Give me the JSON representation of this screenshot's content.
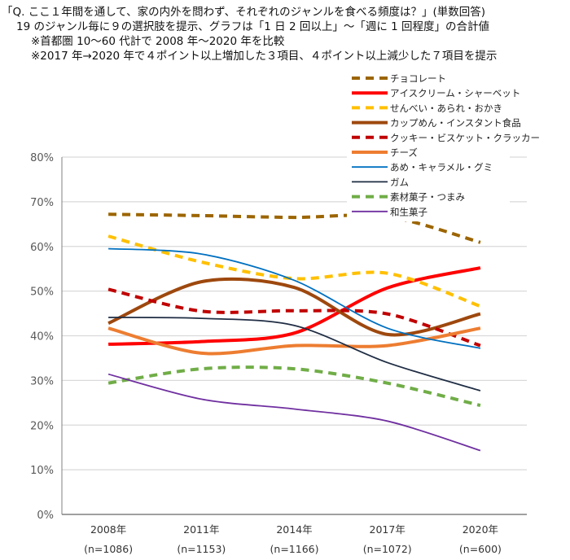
{
  "title_lines": [
    "「Q. ここ１年間を通して、家の内外を問わず、それぞれのジャンルを食べる頻度は？」(単数回答)",
    "19 のジャンル毎に９の選択肢を提示、グラフは「1 日 2 回以上」～「週に 1 回程度」の合計値",
    "※首都圏 10～60 代計で 2008 年～2020 年を比較",
    "※2017 年→2020 年で４ポイント以上増加した３項目、４ポイント以上減少した７項目を提示"
  ],
  "chart_data": {
    "type": "line",
    "categories": [
      "2008年",
      "2011年",
      "2014年",
      "2017年",
      "2020年"
    ],
    "category_sublabels": [
      "(n=1086)",
      "(n=1153)",
      "(n=1166)",
      "(n=1072)",
      "(n=600)"
    ],
    "ylim": [
      0,
      80
    ],
    "yticks": [
      "0%",
      "10%",
      "20%",
      "30%",
      "40%",
      "50%",
      "60%",
      "70%",
      "80%"
    ],
    "grid": true,
    "legend_placement": "top-right",
    "series": [
      {
        "name": "チョコレート",
        "color": "#9c6500",
        "dashed": true,
        "values": [
          67.2,
          66.9,
          66.5,
          66.7,
          60.9
        ]
      },
      {
        "name": "アイスクリーム・シャーベット",
        "color": "#ff0000",
        "dashed": false,
        "values": [
          38.1,
          38.7,
          40.6,
          50.7,
          55.2
        ]
      },
      {
        "name": "せんべい・あられ・おかき",
        "color": "#ffc000",
        "dashed": true,
        "values": [
          62.3,
          56.5,
          52.8,
          54.0,
          46.6
        ]
      },
      {
        "name": "カップめん・インスタント食品",
        "color": "#9e480e",
        "dashed": false,
        "values": [
          42.8,
          52.1,
          50.8,
          40.3,
          44.9
        ]
      },
      {
        "name": "クッキー・ビスケット・クラッカー",
        "color": "#c00000",
        "dashed": true,
        "values": [
          50.4,
          45.5,
          45.6,
          44.9,
          37.8
        ]
      },
      {
        "name": "チーズ",
        "color": "#ed7d31",
        "dashed": false,
        "values": [
          41.7,
          36.1,
          37.8,
          37.8,
          41.7
        ]
      },
      {
        "name": "あめ・キャラメル・グミ",
        "color": "#0070c0",
        "dashed": false,
        "thin": true,
        "values": [
          59.5,
          58.3,
          52.4,
          41.7,
          37.2
        ]
      },
      {
        "name": "ガム",
        "color": "#1f2d44",
        "dashed": false,
        "thin": true,
        "values": [
          44.1,
          43.9,
          42.3,
          34.0,
          27.7
        ]
      },
      {
        "name": "素材菓子・つまみ",
        "color": "#70ad47",
        "dashed": true,
        "values": [
          29.4,
          32.6,
          32.6,
          29.4,
          24.4
        ]
      },
      {
        "name": "和生菓子",
        "color": "#7030a0",
        "dashed": false,
        "thin": true,
        "values": [
          31.4,
          25.8,
          23.6,
          20.9,
          14.3
        ]
      }
    ]
  }
}
